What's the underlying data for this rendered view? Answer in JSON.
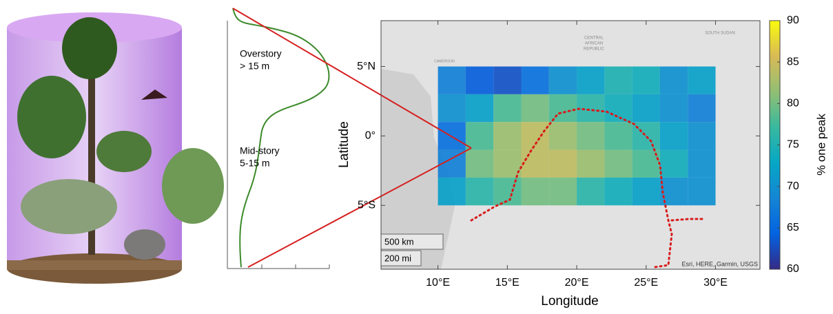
{
  "profile": {
    "overstory": {
      "label": "Overstory",
      "height": "> 15 m"
    },
    "midstory": {
      "label": "Mid-story",
      "height": "5-15 m"
    }
  },
  "chart_data": {
    "type": "heatmap",
    "xlabel": "Longitude",
    "ylabel": "Latitude",
    "xlim": [
      5.9,
      33.2
    ],
    "ylim": [
      -9.6,
      8.3
    ],
    "xticks": [
      {
        "value": 10,
        "label": "10°E"
      },
      {
        "value": 15,
        "label": "15°E"
      },
      {
        "value": 20,
        "label": "20°E"
      },
      {
        "value": 25,
        "label": "25°E"
      },
      {
        "value": 30,
        "label": "30°E"
      }
    ],
    "yticks": [
      {
        "value": -5,
        "label": "5°S"
      },
      {
        "value": 0,
        "label": "0°"
      },
      {
        "value": 5,
        "label": "5°N"
      }
    ],
    "x_edges": [
      10,
      12,
      14,
      16,
      18,
      20,
      22,
      24,
      26,
      28,
      30
    ],
    "y_edges": [
      5,
      3,
      1,
      -1,
      -3,
      -5
    ],
    "values": [
      [
        68,
        64,
        63,
        66,
        70,
        72,
        75,
        74,
        70,
        72
      ],
      [
        70,
        72,
        78,
        80,
        78,
        76,
        74,
        72,
        70,
        68
      ],
      [
        66,
        78,
        82,
        84,
        82,
        80,
        78,
        76,
        72,
        70
      ],
      [
        68,
        80,
        82,
        84,
        84,
        82,
        80,
        78,
        74,
        70
      ],
      [
        72,
        76,
        78,
        80,
        80,
        76,
        74,
        72,
        70,
        70
      ]
    ],
    "colorbar": {
      "label": "% one peak",
      "clim": [
        60,
        90
      ],
      "ticks": [
        60,
        65,
        70,
        75,
        80,
        85,
        90
      ],
      "colormap": [
        "#352a87",
        "#0363e1",
        "#1485d4",
        "#06a7c6",
        "#38b99e",
        "#92bf73",
        "#d9ba56",
        "#f9fb0e"
      ]
    },
    "basemap": {
      "place_labels": [
        "CENTRAL",
        "AFRICAN",
        "REPUBLIC",
        "SOUTH SUDAN",
        "CAMEROON"
      ],
      "scale_bar": [
        "500 km",
        "200 mi"
      ],
      "attribution": "Esri, HERE, Garmin, USGS"
    }
  }
}
